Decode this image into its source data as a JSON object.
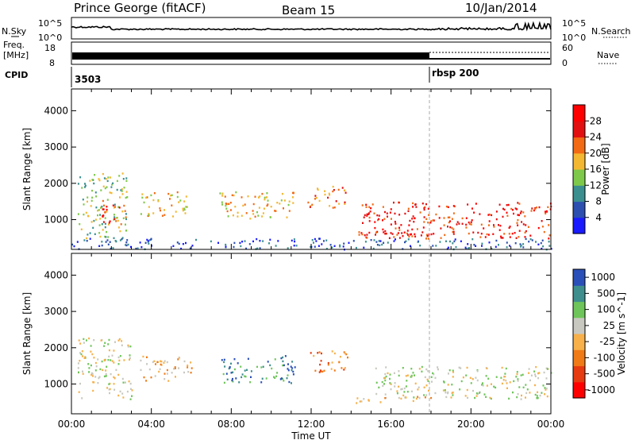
{
  "header": {
    "site": "Prince George (fitACF)",
    "beam": "Beam 15",
    "date": "10/Jan/2014"
  },
  "top_labels": {
    "nsky": "N.Sky",
    "nsearch": "N.Search",
    "freq_line1": "Freq.",
    "freq_line2": "[MHz]",
    "nave": "Nave",
    "cpid": "CPID",
    "cpid_a": "3503",
    "cpid_b": "rbsp 200",
    "noise_ticks": [
      "10^5",
      "10^0"
    ],
    "freq_ticks": [
      "18",
      "8"
    ],
    "nave_ticks": [
      "60",
      "0"
    ]
  },
  "chart_data": [
    {
      "type": "heatmap",
      "xlabel": "Time UT",
      "ylabel": "Slant Range [km]",
      "x_ticks": [
        "00:00",
        "04:00",
        "08:00",
        "12:00",
        "16:00",
        "20:00",
        "00:00"
      ],
      "xlim_hours": [
        0,
        24
      ],
      "y_ticks": [
        1000,
        2000,
        3000,
        4000
      ],
      "ylim": [
        180,
        4600
      ],
      "colorbar": {
        "label": "Power [dB]",
        "ticks": [
          4,
          8,
          12,
          16,
          20,
          24,
          28
        ],
        "colors": [
          "#1a1aff",
          "#2c4fb0",
          "#3b8f8f",
          "#7ec94a",
          "#f4b731",
          "#f26a14",
          "#e21010",
          "#ff0000"
        ]
      },
      "scatter_regions": [
        {
          "t": [
            0.3,
            2.8
          ],
          "r": [
            500,
            2300
          ],
          "level": 3
        },
        {
          "t": [
            1.5,
            2.8
          ],
          "r": [
            900,
            1600
          ],
          "level": 6
        },
        {
          "t": [
            3.4,
            5.8
          ],
          "r": [
            1100,
            1800
          ],
          "level": 4
        },
        {
          "t": [
            7.4,
            11.2
          ],
          "r": [
            1050,
            1800
          ],
          "level": 4
        },
        {
          "t": [
            11.8,
            13.8
          ],
          "r": [
            1350,
            1950
          ],
          "level": 5
        },
        {
          "t": [
            14.5,
            24.0
          ],
          "r": [
            500,
            1500
          ],
          "level": 6
        },
        {
          "t": [
            14.0,
            18.0
          ],
          "r": [
            500,
            700
          ],
          "level": 6
        },
        {
          "t": [
            0,
            24
          ],
          "r": [
            200,
            500
          ],
          "level": 1
        }
      ]
    },
    {
      "type": "heatmap",
      "xlabel": "Time UT",
      "ylabel": "Slant Range [km]",
      "x_ticks": [
        "00:00",
        "04:00",
        "08:00",
        "12:00",
        "16:00",
        "20:00",
        "00:00"
      ],
      "xlim_hours": [
        0,
        24
      ],
      "y_ticks": [
        1000,
        2000,
        3000,
        4000
      ],
      "ylim": [
        180,
        4600
      ],
      "colorbar": {
        "label": "Velocity [m s^-1]",
        "ticks": [
          "1000",
          "500",
          "100",
          "25",
          "-25",
          "-100",
          "-500",
          "-1000"
        ],
        "colors": [
          "#2a4fb8",
          "#3e8e8e",
          "#6ec55a",
          "#c8c8c0",
          "#f7b04a",
          "#f07a16",
          "#e63a10",
          "#ff0000"
        ]
      },
      "scatter_regions": [
        {
          "t": [
            0.3,
            3.0
          ],
          "r": [
            600,
            2300
          ],
          "level": 3
        },
        {
          "t": [
            3.4,
            6.0
          ],
          "r": [
            1100,
            1800
          ],
          "level": 4
        },
        {
          "t": [
            7.4,
            11.2
          ],
          "r": [
            1050,
            1800
          ],
          "level": 1
        },
        {
          "t": [
            11.8,
            13.8
          ],
          "r": [
            1350,
            1950
          ],
          "level": 5
        },
        {
          "t": [
            15.2,
            24.0
          ],
          "r": [
            600,
            1500
          ],
          "level": 3
        },
        {
          "t": [
            14.0,
            18.0
          ],
          "r": [
            500,
            700
          ],
          "level": 4
        }
      ]
    }
  ]
}
